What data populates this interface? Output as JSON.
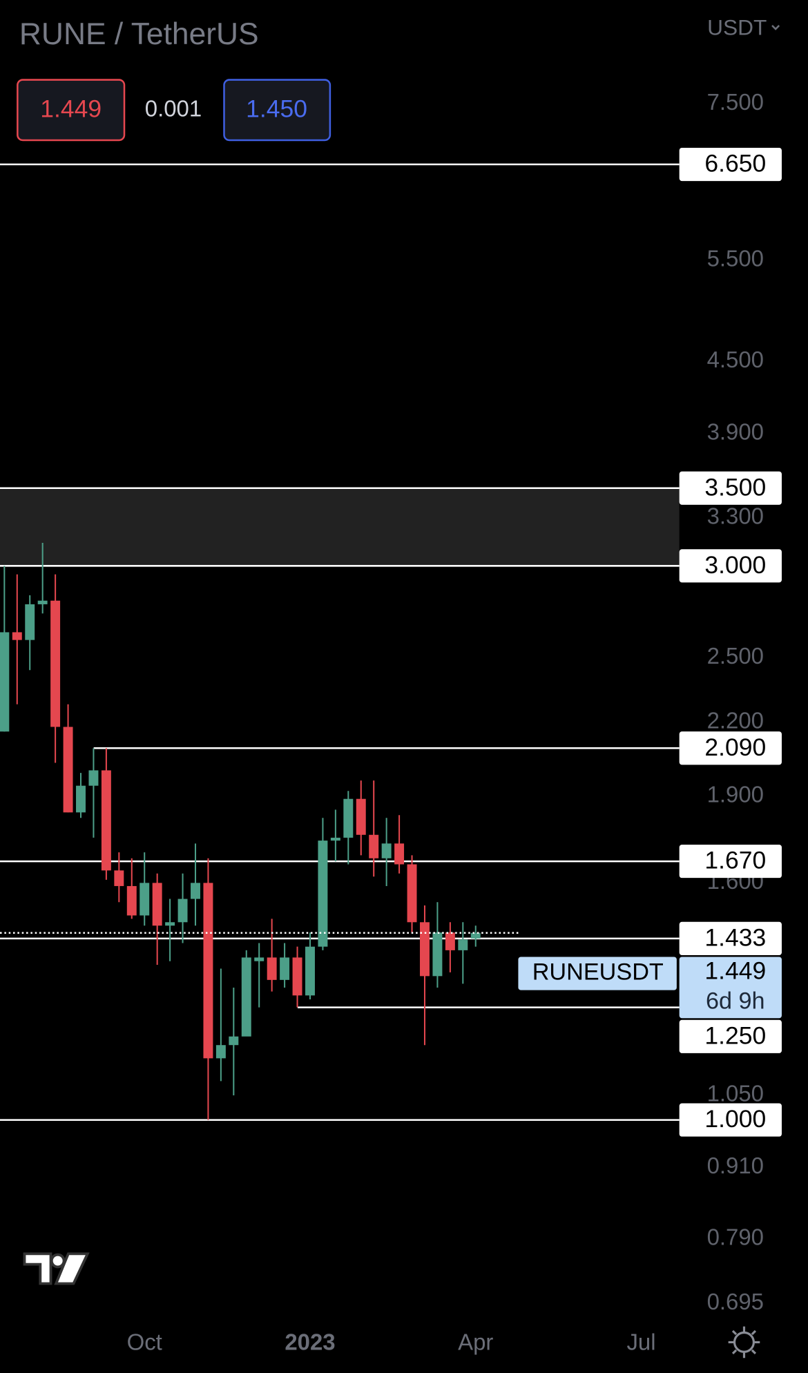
{
  "chart_data": {
    "type": "candlestick",
    "title": "RUNE / TetherUS",
    "currency": "USDT",
    "header": {
      "sell": "1.449",
      "spread": "0.001",
      "buy": "1.450"
    },
    "last_price": {
      "symbol": "RUNEUSDT",
      "value": 1.449,
      "countdown": "6d 9h"
    },
    "up_color": "#4c9f88",
    "down_color": "#e5474f",
    "log_scale": true,
    "categories": [
      null,
      null,
      null,
      null,
      null,
      null,
      null,
      null,
      null,
      null,
      null,
      "Oct",
      null,
      null,
      null,
      null,
      null,
      null,
      null,
      null,
      null,
      null,
      null,
      null,
      "2023",
      null,
      null,
      null,
      null,
      null,
      null,
      null,
      null,
      null,
      null,
      null,
      null,
      "Apr",
      null,
      null,
      null,
      null,
      null,
      null,
      null,
      null,
      null,
      null,
      null,
      null,
      "Jul"
    ],
    "open": [
      2.16,
      2.63,
      2.59,
      2.78,
      2.8,
      2.18,
      1.84,
      1.94,
      2.0,
      1.64,
      1.59,
      1.5,
      1.6,
      1.47,
      1.48,
      1.55,
      1.6,
      1.13,
      1.16,
      1.18,
      1.37,
      1.38,
      1.32,
      1.38,
      1.28,
      1.41,
      1.74,
      1.75,
      1.89,
      1.76,
      1.68,
      1.73,
      1.66,
      1.48,
      1.33,
      1.45,
      1.4,
      1.433,
      null,
      null,
      null,
      null,
      null,
      null,
      null,
      null,
      null,
      null,
      null,
      null,
      null
    ],
    "high": [
      3.0,
      2.95,
      2.83,
      3.14,
      2.95,
      2.28,
      1.99,
      2.09,
      2.09,
      1.7,
      1.68,
      1.7,
      1.63,
      1.55,
      1.63,
      1.73,
      1.68,
      1.35,
      1.3,
      1.4,
      1.42,
      1.49,
      1.42,
      1.41,
      1.45,
      1.82,
      1.85,
      1.92,
      1.96,
      1.96,
      1.82,
      1.83,
      1.69,
      1.53,
      1.54,
      1.48,
      1.48,
      1.47,
      null,
      null,
      null,
      null,
      null,
      null,
      null,
      null,
      null,
      null,
      null,
      null,
      null
    ],
    "low": [
      2.16,
      2.28,
      2.44,
      2.73,
      2.03,
      1.84,
      1.82,
      1.75,
      1.61,
      1.54,
      1.49,
      1.47,
      1.36,
      1.37,
      1.42,
      1.47,
      1.0,
      1.08,
      1.05,
      1.21,
      1.25,
      1.29,
      1.3,
      1.25,
      1.27,
      1.4,
      1.67,
      1.66,
      1.69,
      1.62,
      1.59,
      1.63,
      1.45,
      1.16,
      1.3,
      1.34,
      1.31,
      1.41,
      null,
      null,
      null,
      null,
      null,
      null,
      null,
      null,
      null,
      null,
      null,
      null,
      null
    ],
    "close": [
      2.63,
      2.59,
      2.78,
      2.8,
      2.18,
      1.84,
      1.94,
      2.0,
      1.64,
      1.59,
      1.5,
      1.6,
      1.47,
      1.48,
      1.55,
      1.6,
      1.13,
      1.16,
      1.18,
      1.38,
      1.38,
      1.32,
      1.38,
      1.28,
      1.41,
      1.74,
      1.75,
      1.89,
      1.76,
      1.68,
      1.73,
      1.66,
      1.48,
      1.33,
      1.45,
      1.4,
      1.43,
      1.449,
      null,
      null,
      null,
      null,
      null,
      null,
      null,
      null,
      null,
      null,
      null,
      null,
      null
    ],
    "ylim": [
      0.664,
      9.21
    ],
    "yticks": [
      {
        "value": 7.5,
        "label": "7.500"
      },
      {
        "value": 5.5,
        "label": "5.500"
      },
      {
        "value": 4.5,
        "label": "4.500"
      },
      {
        "value": 3.9,
        "label": "3.900"
      },
      {
        "value": 3.3,
        "label": "3.300"
      },
      {
        "value": 2.5,
        "label": "2.500"
      },
      {
        "value": 2.2,
        "label": "2.200"
      },
      {
        "value": 1.9,
        "label": "1.900"
      },
      {
        "value": 1.6,
        "label": "1.600"
      },
      {
        "value": 1.05,
        "label": "1.050"
      },
      {
        "value": 0.91,
        "label": "0.910"
      },
      {
        "value": 0.79,
        "label": "0.790"
      },
      0.695
    ],
    "zone": [
      3.0,
      3.5
    ],
    "levels": [
      {
        "value": 6.65,
        "label": "6.650"
      },
      {
        "value": 3.5,
        "label": "3.500"
      },
      {
        "value": 3.0,
        "label": "3.000"
      },
      {
        "value": 2.09,
        "label": "2.090"
      },
      {
        "value": 1.67,
        "label": "1.670"
      },
      {
        "value": 1.433,
        "label": "1.433"
      },
      {
        "value": 1.25,
        "label": "1.250"
      },
      {
        "value": 1.0,
        "label": "1.000"
      }
    ]
  }
}
